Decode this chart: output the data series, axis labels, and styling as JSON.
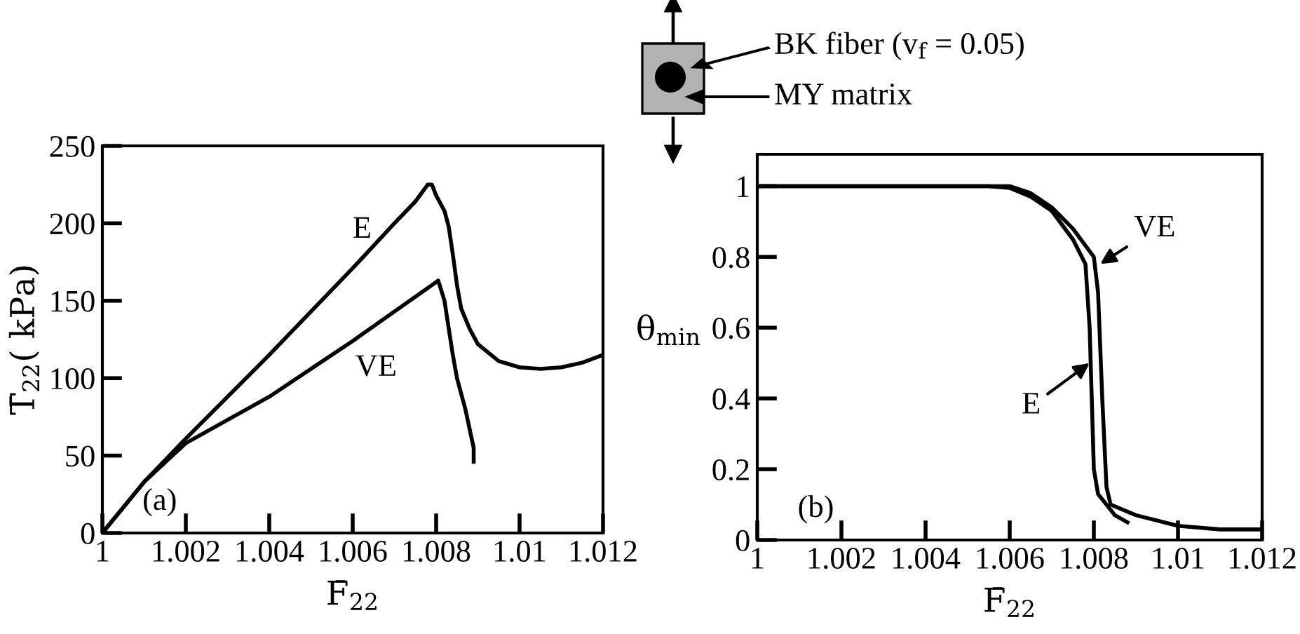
{
  "chart_data": [
    {
      "type": "line",
      "xlabel": "F̄$_{22}$",
      "ylabel": "T̄$_{22}$( kPa)",
      "xlim": [
        1,
        1.012
      ],
      "ylim": [
        0,
        250
      ],
      "xticks": [
        1,
        1.002,
        1.004,
        1.006,
        1.008,
        1.01,
        1.012
      ],
      "yticks": [
        0,
        50,
        100,
        150,
        200,
        250
      ],
      "grid": false,
      "legend": false,
      "marker": "none",
      "line_style": "solid",
      "series": [
        {
          "color": "#000000",
          "x": [
            1,
            1.001,
            1.002,
            1.004,
            1.006,
            1.007,
            1.0075,
            1.0078,
            1.0079,
            1.008,
            1.0082,
            1.0083,
            1.0084,
            1.0085,
            1.0086,
            1.0088,
            1.009,
            1.0095,
            1.01,
            1.0105,
            1.011,
            1.0115,
            1.012
          ],
          "values": [
            0,
            33,
            61,
            115,
            171,
            200,
            214,
            225,
            225,
            218,
            208,
            198,
            180,
            160,
            145,
            132,
            122,
            111,
            107,
            106,
            107,
            110,
            115
          ]
        },
        {
          "color": "#000000",
          "x": [
            1,
            1.001,
            1.002,
            1.004,
            1.006,
            1.008,
            1.00805,
            1.0082,
            1.0084,
            1.0085,
            1.0087,
            1.0089,
            1.0089
          ],
          "values": [
            0,
            33,
            58,
            88,
            124,
            162,
            163,
            150,
            115,
            100,
            80,
            55,
            46
          ]
        }
      ],
      "annotations": [
        "(a)",
        {
          "text": "E",
          "x": 1.0066,
          "y": 188
        },
        {
          "text": "VE",
          "x": 1.006,
          "y": 124
        }
      ]
    },
    {
      "type": "line",
      "xlabel": "F̄$_{22}$",
      "ylabel": "θ$_{min}$",
      "xlim": [
        1,
        1.012
      ],
      "ylim": [
        0,
        1.09
      ],
      "xticks": [
        1,
        1.002,
        1.004,
        1.006,
        1.008,
        1.01,
        1.012
      ],
      "yticks": [
        0,
        0.2,
        0.4,
        0.6,
        0.8,
        1
      ],
      "grid": false,
      "legend": false,
      "marker": "none",
      "line_style": "solid",
      "series": [
        {
          "color": "#000000",
          "x": [
            1,
            1.0055,
            1.006,
            1.0065,
            1.007,
            1.0075,
            1.0078,
            1.0079,
            1.00795,
            1.008,
            1.0081,
            1.0083,
            1.0085,
            1.0088
          ],
          "values": [
            1,
            1,
            0.995,
            0.97,
            0.93,
            0.85,
            0.78,
            0.6,
            0.4,
            0.2,
            0.13,
            0.1,
            0.07,
            0.05
          ]
        },
        {
          "color": "#000000",
          "x": [
            1,
            1.0055,
            1.006,
            1.0065,
            1.007,
            1.0075,
            1.008,
            1.0081,
            1.0082,
            1.0083,
            1.0084,
            1.009,
            1.01,
            1.011,
            1.012
          ],
          "values": [
            1,
            1,
            1.0,
            0.98,
            0.94,
            0.88,
            0.8,
            0.7,
            0.4,
            0.15,
            0.1,
            0.07,
            0.04,
            0.03,
            0.03
          ]
        }
      ],
      "annotations": [
        "(b)",
        {
          "text": "E",
          "x": 1.0079,
          "y": 0.5
        },
        {
          "text": "VE",
          "x": 1.00815,
          "y": 0.78
        },
        "BK fiber (v$_{f}$ = 0.05)",
        "MY matrix"
      ]
    }
  ]
}
